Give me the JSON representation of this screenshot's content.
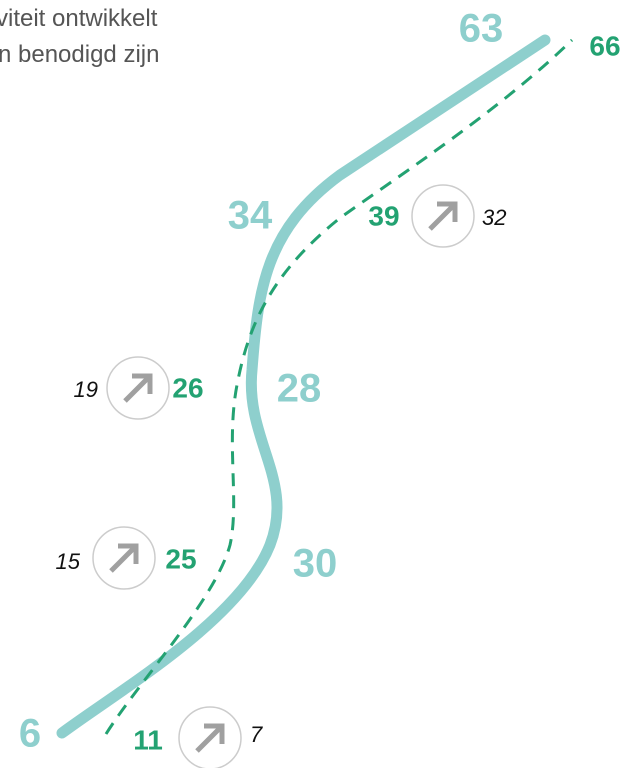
{
  "intro_lines": [
    "viteit ontwikkelt",
    "n benodigd zijn"
  ],
  "solid_labels": [
    6,
    30,
    28,
    34,
    63
  ],
  "dashed_labels": [
    11,
    25,
    26,
    39,
    66
  ],
  "arrow_labels": [
    7,
    15,
    19,
    32
  ]
}
